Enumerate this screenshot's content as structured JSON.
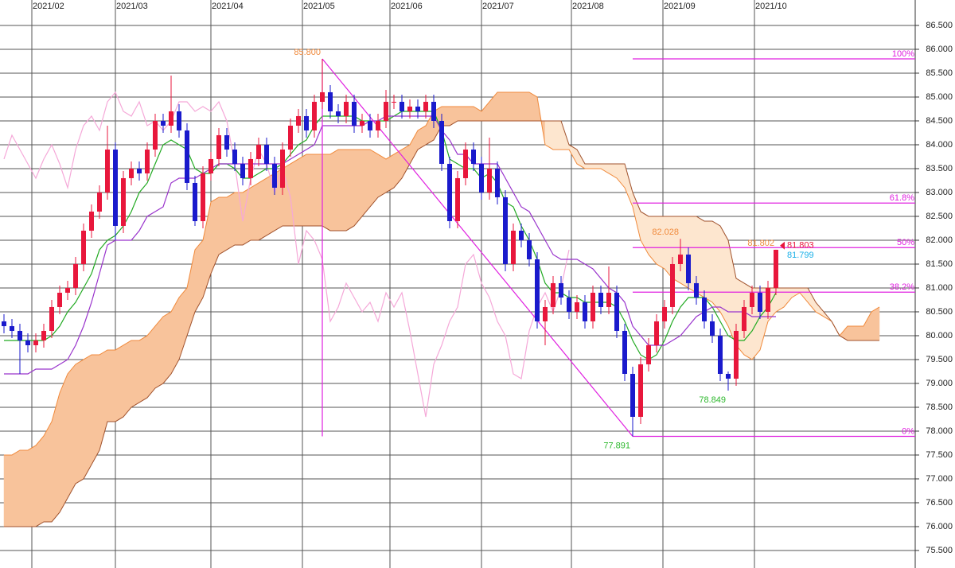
{
  "chart_data": {
    "type": "candlestick",
    "xlim": [
      -0.5,
      114.5
    ],
    "xticks": [
      {
        "value": 3.5,
        "label": "2021/02"
      },
      {
        "value": 14,
        "label": "2021/03"
      },
      {
        "value": 26,
        "label": "2021/04"
      },
      {
        "value": 37.5,
        "label": "2021/05"
      },
      {
        "value": 48.5,
        "label": "2021/06"
      },
      {
        "value": 60,
        "label": "2021/07"
      },
      {
        "value": 71.3,
        "label": "2021/08"
      },
      {
        "value": 82.8,
        "label": "2021/09"
      },
      {
        "value": 94.3,
        "label": "2021/10"
      }
    ],
    "ylim": [
      75.133,
      87.033
    ],
    "yticks": [
      {
        "value": 86.5,
        "label": "86.500"
      },
      {
        "value": 86,
        "label": "86.000"
      },
      {
        "value": 85.5,
        "label": "85.500"
      },
      {
        "value": 85,
        "label": "85.000"
      },
      {
        "value": 84.5,
        "label": "84.500"
      },
      {
        "value": 84,
        "label": "84.000"
      },
      {
        "value": 83.5,
        "label": "83.500"
      },
      {
        "value": 83,
        "label": "83.000"
      },
      {
        "value": 82.5,
        "label": "82.500"
      },
      {
        "value": 82,
        "label": "82.000"
      },
      {
        "value": 81.5,
        "label": "81.500"
      },
      {
        "value": 81,
        "label": "81.000"
      },
      {
        "value": 80.5,
        "label": "80.500"
      },
      {
        "value": 80,
        "label": "80.000"
      },
      {
        "value": 79.5,
        "label": "79.500"
      },
      {
        "value": 79,
        "label": "79.000"
      },
      {
        "value": 78.5,
        "label": "78.500"
      },
      {
        "value": 78,
        "label": "78.000"
      },
      {
        "value": 77.5,
        "label": "77.500"
      },
      {
        "value": 77,
        "label": "77.000"
      },
      {
        "value": 76.5,
        "label": "76.500"
      },
      {
        "value": 76,
        "label": "76.000"
      },
      {
        "value": 75.5,
        "label": "75.500"
      }
    ],
    "grid": true,
    "up_color": "#e8173c",
    "down_color": "#1a1acc",
    "candles": [
      [
        80.3,
        80.45,
        80.05,
        80.2
      ],
      [
        80.2,
        80.35,
        79.95,
        80.1
      ],
      [
        80.1,
        80.25,
        79.2,
        79.9
      ],
      [
        79.9,
        80.05,
        79.65,
        79.8
      ],
      [
        79.8,
        80.05,
        79.65,
        79.9
      ],
      [
        79.9,
        80.25,
        79.75,
        80.1
      ],
      [
        80.1,
        80.75,
        79.95,
        80.6
      ],
      [
        80.6,
        81.05,
        80.45,
        80.9
      ],
      [
        80.9,
        81.15,
        80.75,
        81.0
      ],
      [
        81.0,
        81.65,
        80.85,
        81.5
      ],
      [
        81.5,
        82.35,
        81.35,
        82.2
      ],
      [
        82.2,
        82.75,
        82.05,
        82.6
      ],
      [
        82.6,
        83.15,
        82.45,
        83.0
      ],
      [
        83.0,
        84.4,
        82.85,
        83.9
      ],
      [
        83.9,
        84.05,
        82.0,
        82.3
      ],
      [
        82.3,
        83.45,
        82.15,
        83.3
      ],
      [
        83.3,
        83.65,
        83.15,
        83.5
      ],
      [
        83.5,
        83.65,
        83.25,
        83.4
      ],
      [
        83.4,
        84.05,
        83.25,
        83.9
      ],
      [
        83.9,
        84.65,
        83.75,
        84.5
      ],
      [
        84.5,
        84.65,
        84.25,
        84.4
      ],
      [
        84.4,
        85.45,
        84.25,
        84.7
      ],
      [
        84.7,
        84.85,
        84.15,
        84.3
      ],
      [
        84.3,
        84.45,
        83.05,
        83.2
      ],
      [
        83.2,
        83.35,
        82.3,
        82.4
      ],
      [
        82.4,
        83.55,
        82.25,
        83.4
      ],
      [
        83.4,
        83.85,
        83.25,
        83.7
      ],
      [
        83.7,
        84.35,
        83.55,
        84.2
      ],
      [
        84.2,
        84.35,
        83.75,
        83.9
      ],
      [
        83.9,
        84.05,
        83.45,
        83.6
      ],
      [
        83.6,
        83.75,
        83.15,
        83.3
      ],
      [
        83.3,
        83.85,
        83.15,
        83.7
      ],
      [
        83.7,
        84.15,
        83.55,
        84.0
      ],
      [
        84.0,
        84.15,
        83.45,
        83.6
      ],
      [
        83.6,
        83.75,
        82.95,
        83.1
      ],
      [
        83.1,
        84.05,
        82.95,
        83.9
      ],
      [
        83.9,
        84.55,
        83.75,
        84.4
      ],
      [
        84.4,
        84.75,
        84.25,
        84.6
      ],
      [
        84.6,
        84.75,
        84.15,
        84.3
      ],
      [
        84.3,
        85.05,
        84.15,
        84.9
      ],
      [
        84.9,
        85.8,
        84.75,
        85.1
      ],
      [
        85.1,
        85.25,
        84.55,
        84.7
      ],
      [
        84.7,
        84.85,
        84.45,
        84.6
      ],
      [
        84.6,
        85.05,
        84.45,
        84.9
      ],
      [
        84.9,
        85.05,
        84.25,
        84.4
      ],
      [
        84.4,
        84.65,
        84.25,
        84.5
      ],
      [
        84.5,
        84.65,
        84.15,
        84.3
      ],
      [
        84.3,
        84.65,
        84.15,
        84.5
      ],
      [
        84.5,
        85.15,
        84.35,
        84.9
      ],
      [
        84.9,
        85.05,
        84.75,
        84.9
      ],
      [
        84.9,
        85.05,
        84.55,
        84.7
      ],
      [
        84.7,
        84.95,
        84.55,
        84.8
      ],
      [
        84.8,
        84.95,
        84.55,
        84.7
      ],
      [
        84.7,
        85.05,
        84.55,
        84.9
      ],
      [
        84.9,
        85.05,
        84.35,
        84.5
      ],
      [
        84.5,
        84.65,
        83.45,
        83.6
      ],
      [
        83.6,
        83.75,
        82.25,
        82.4
      ],
      [
        82.4,
        83.45,
        82.25,
        83.3
      ],
      [
        83.3,
        84.05,
        83.15,
        83.9
      ],
      [
        83.9,
        84.05,
        83.45,
        83.6
      ],
      [
        83.6,
        83.75,
        82.85,
        83.0
      ],
      [
        83.0,
        84.15,
        82.85,
        83.5
      ],
      [
        83.5,
        83.65,
        82.75,
        82.9
      ],
      [
        82.9,
        83.05,
        81.35,
        81.5
      ],
      [
        81.5,
        82.35,
        81.35,
        82.2
      ],
      [
        82.2,
        82.35,
        81.85,
        82.0
      ],
      [
        82.0,
        82.15,
        81.45,
        81.6
      ],
      [
        81.6,
        81.75,
        80.15,
        80.3
      ],
      [
        80.3,
        80.75,
        79.8,
        80.6
      ],
      [
        80.6,
        81.25,
        80.45,
        81.1
      ],
      [
        81.1,
        81.25,
        80.65,
        80.8
      ],
      [
        80.8,
        80.95,
        80.35,
        80.5
      ],
      [
        80.5,
        80.85,
        80.35,
        80.7
      ],
      [
        80.7,
        80.85,
        80.15,
        80.3
      ],
      [
        80.3,
        81.05,
        80.15,
        80.9
      ],
      [
        80.9,
        81.05,
        80.45,
        80.6
      ],
      [
        80.6,
        81.45,
        80.45,
        80.9
      ],
      [
        80.9,
        81.05,
        79.95,
        80.1
      ],
      [
        80.1,
        80.25,
        79.05,
        79.2
      ],
      [
        79.2,
        79.35,
        77.891,
        78.3
      ],
      [
        78.3,
        79.55,
        78.15,
        79.4
      ],
      [
        79.4,
        79.95,
        79.25,
        79.8
      ],
      [
        79.8,
        80.45,
        79.65,
        80.3
      ],
      [
        80.3,
        80.75,
        80.15,
        80.6
      ],
      [
        80.6,
        81.65,
        80.45,
        81.5
      ],
      [
        81.5,
        82.028,
        81.35,
        81.7
      ],
      [
        81.7,
        81.85,
        80.95,
        81.1
      ],
      [
        81.1,
        81.25,
        80.65,
        80.8
      ],
      [
        80.8,
        80.95,
        80.15,
        80.3
      ],
      [
        80.3,
        80.45,
        79.85,
        80.0
      ],
      [
        80.0,
        80.15,
        79.05,
        79.2
      ],
      [
        79.2,
        79.25,
        78.849,
        79.1
      ],
      [
        79.1,
        80.25,
        78.95,
        80.1
      ],
      [
        80.1,
        80.75,
        79.95,
        80.6
      ],
      [
        80.6,
        81.05,
        80.45,
        80.9
      ],
      [
        80.9,
        81.05,
        80.35,
        80.5
      ],
      [
        80.5,
        81.15,
        80.35,
        81.0
      ],
      [
        81.0,
        81.802,
        80.85,
        81.8
      ]
    ],
    "cloud": {
      "up_color": "#f8c39b",
      "down_color": "#fde6cf",
      "span1_color": "#f08a3c",
      "span2_color": "#a0522d",
      "span1": [
        77.5,
        77.5,
        77.6,
        77.6,
        77.7,
        77.9,
        78.2,
        78.8,
        79.2,
        79.4,
        79.5,
        79.6,
        79.6,
        79.7,
        79.7,
        79.8,
        79.9,
        79.9,
        80.0,
        80.2,
        80.4,
        80.5,
        80.8,
        81.0,
        81.8,
        82.0,
        82.8,
        82.9,
        82.9,
        83.0,
        83.0,
        83.1,
        83.2,
        83.3,
        83.4,
        83.5,
        83.6,
        83.7,
        83.8,
        83.8,
        83.8,
        83.8,
        83.9,
        83.9,
        83.9,
        83.9,
        83.9,
        83.8,
        83.7,
        83.8,
        83.9,
        84.0,
        84.3,
        84.4,
        84.7,
        84.8,
        84.8,
        84.8,
        84.8,
        84.8,
        84.7,
        84.9,
        85.1,
        85.1,
        85.1,
        85.1,
        85.1,
        85.0,
        84.0,
        83.9,
        83.9,
        83.9,
        83.6,
        83.5,
        83.5,
        83.5,
        83.4,
        83.3,
        83.1,
        82.7,
        82.0,
        81.7,
        81.5,
        81.4,
        81.2,
        81.1,
        81.0,
        80.9,
        80.8,
        80.7,
        80.5,
        80.2,
        79.8,
        79.6,
        79.5,
        79.7,
        80.3,
        80.5,
        80.6,
        80.8,
        80.9,
        80.7,
        80.5,
        80.4,
        80.3,
        80.0,
        80.2,
        80.2,
        80.2,
        80.5,
        80.6
      ],
      "span2": [
        76.0,
        76.0,
        76.0,
        76.0,
        76.0,
        76.1,
        76.1,
        76.3,
        76.6,
        76.9,
        77.0,
        77.3,
        77.6,
        78.2,
        78.2,
        78.3,
        78.5,
        78.6,
        78.7,
        78.9,
        79.0,
        79.2,
        79.5,
        80.0,
        80.5,
        80.8,
        81.3,
        81.7,
        81.8,
        81.9,
        81.9,
        82.0,
        82.0,
        82.1,
        82.2,
        82.3,
        82.3,
        82.3,
        82.3,
        82.3,
        82.3,
        82.2,
        82.2,
        82.2,
        82.3,
        82.5,
        82.7,
        82.9,
        83.0,
        83.1,
        83.3,
        83.6,
        83.9,
        84.0,
        84.1,
        84.4,
        84.4,
        84.5,
        84.5,
        84.5,
        84.5,
        84.5,
        84.5,
        84.5,
        84.5,
        84.5,
        84.5,
        84.5,
        84.5,
        84.5,
        84.5,
        84.0,
        83.9,
        83.6,
        83.6,
        83.6,
        83.6,
        83.6,
        83.6,
        83.0,
        82.6,
        82.5,
        82.5,
        82.5,
        82.5,
        82.5,
        82.5,
        82.5,
        82.4,
        82.4,
        82.3,
        82.0,
        81.2,
        81.1,
        81.0,
        81.0,
        81.0,
        81.0,
        81.0,
        81.0,
        81.0,
        81.0,
        80.7,
        80.5,
        80.3,
        80.0,
        79.9,
        79.9,
        79.9,
        79.9,
        79.9
      ]
    },
    "lines": [
      {
        "color": "#f5a8d8",
        "values": [
          83.7,
          84.2,
          83.9,
          83.6,
          83.3,
          83.7,
          84.0,
          83.6,
          83.1,
          83.9,
          84.4,
          84.6,
          84.3,
          84.9,
          85.1,
          84.7,
          84.6,
          84.9,
          84.4,
          84.5,
          84.3,
          84.5,
          84.9,
          84.9,
          84.7,
          84.8,
          84.7,
          84.9,
          84.5,
          83.6,
          82.4,
          83.3,
          83.9,
          83.6,
          83.0,
          83.5,
          82.9,
          81.5,
          82.2,
          82.0,
          81.6,
          80.3,
          80.6,
          81.1,
          80.8,
          80.5,
          80.7,
          80.3,
          80.9,
          80.6,
          80.9,
          80.1,
          79.2,
          78.3,
          79.4,
          79.8,
          80.3,
          80.6,
          81.5,
          81.7,
          81.1,
          80.8,
          80.3,
          80.0,
          79.2,
          79.1,
          80.1,
          80.6,
          80.9,
          80.5,
          81.0,
          81.8,
          null,
          null,
          null,
          null,
          null,
          null,
          null,
          null,
          null,
          null,
          null,
          null,
          null,
          null,
          null,
          null,
          null,
          null,
          null,
          null,
          null,
          null,
          null,
          null,
          null,
          null
        ]
      },
      {
        "color": "#22aa22",
        "values": [
          79.9,
          79.9,
          79.9,
          79.9,
          79.9,
          79.9,
          80.0,
          80.2,
          80.5,
          80.7,
          81.0,
          81.3,
          81.8,
          82.0,
          82.1,
          82.3,
          82.6,
          83.0,
          83.2,
          83.6,
          84.0,
          84.1,
          84.0,
          83.9,
          83.5,
          83.4,
          83.4,
          83.6,
          83.6,
          83.5,
          83.3,
          83.3,
          83.4,
          83.5,
          83.5,
          83.6,
          83.8,
          84.0,
          84.1,
          84.4,
          84.6,
          84.6,
          84.6,
          84.6,
          84.6,
          84.5,
          84.5,
          84.5,
          84.5,
          84.6,
          84.7,
          84.7,
          84.7,
          84.7,
          84.7,
          84.3,
          83.7,
          83.6,
          83.5,
          83.5,
          83.3,
          83.4,
          83.2,
          82.8,
          82.7,
          82.3,
          82.0,
          81.6,
          81.1,
          80.9,
          80.9,
          80.8,
          80.8,
          80.7,
          80.7,
          80.7,
          80.7,
          80.6,
          80.3,
          79.9,
          79.6,
          79.5,
          79.6,
          79.9,
          80.3,
          80.6,
          80.8,
          80.8,
          80.8,
          80.6,
          80.3,
          80.0,
          79.9,
          79.9,
          80.1,
          80.4,
          80.6,
          80.9
        ]
      },
      {
        "color": "#9933cc",
        "values": [
          79.2,
          79.2,
          79.2,
          79.2,
          79.3,
          79.3,
          79.3,
          79.4,
          79.5,
          79.8,
          80.2,
          80.7,
          81.3,
          81.9,
          82.0,
          82.0,
          82.0,
          82.2,
          82.5,
          82.6,
          82.7,
          83.2,
          83.3,
          83.3,
          83.3,
          83.4,
          83.5,
          83.6,
          83.6,
          83.6,
          83.6,
          83.6,
          83.6,
          83.6,
          83.6,
          83.6,
          83.7,
          83.8,
          83.9,
          84.0,
          84.4,
          84.4,
          84.4,
          84.4,
          84.4,
          84.4,
          84.5,
          84.5,
          84.6,
          84.6,
          84.6,
          84.6,
          84.6,
          84.6,
          84.6,
          84.3,
          84.1,
          83.8,
          83.8,
          83.6,
          83.6,
          83.6,
          83.6,
          83.3,
          83.0,
          82.7,
          82.6,
          82.3,
          82.0,
          81.7,
          81.6,
          81.6,
          81.6,
          81.5,
          81.4,
          81.2,
          81.0,
          80.9,
          80.7,
          80.2,
          80.0,
          79.8,
          79.8,
          79.8,
          79.9,
          80.0,
          80.2,
          80.4,
          80.5,
          80.6,
          80.6,
          80.5,
          80.5,
          80.5,
          80.4,
          80.4,
          80.4,
          80.4
        ]
      }
    ],
    "fibonacci": {
      "color": "#e020e0",
      "start": 79,
      "levels": [
        {
          "label": "100%",
          "value": 85.8
        },
        {
          "label": "61.8%",
          "value": 82.779
        },
        {
          "label": "50%",
          "value": 81.846
        },
        {
          "label": "38.2%",
          "value": 80.912
        },
        {
          "label": "0%",
          "value": 77.891
        }
      ]
    },
    "trend_line": {
      "color": "#e020e0",
      "from": [
        40,
        85.8
      ],
      "to": [
        79,
        77.891
      ],
      "vertical_line": true
    },
    "annotations": [
      {
        "label": "85.800",
        "x": 40,
        "y": 85.8,
        "color": "#f08a3c",
        "position": "above-left"
      },
      {
        "label": "77.891",
        "x": 79,
        "y": 77.891,
        "color": "#2db82d",
        "position": "below-left"
      },
      {
        "label": "78.849",
        "x": 91,
        "y": 78.849,
        "color": "#2db82d",
        "position": "below-left"
      },
      {
        "label": "82.028",
        "x": 85,
        "y": 82.028,
        "color": "#f08a3c",
        "position": "above-left"
      },
      {
        "label": "81.802",
        "x": 97,
        "y": 81.802,
        "color": "#f08a3c",
        "position": "above-left"
      },
      {
        "label": "81.803",
        "x": 97,
        "y": 81.803,
        "color": "#e8173c",
        "position": "right"
      },
      {
        "label": "81.799",
        "x": 97,
        "y": 81.799,
        "color": "#1ab0e8",
        "position": "right-below"
      }
    ]
  }
}
